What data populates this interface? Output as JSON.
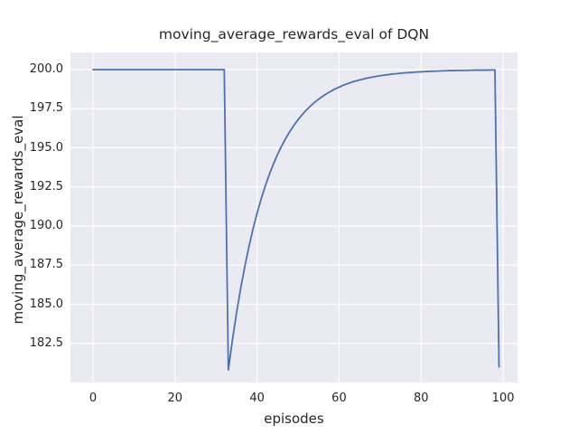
{
  "colors": {
    "figure_bg": "#ffffff",
    "axes_bg": "#eaeaf2",
    "grid": "#ffffff",
    "line": "#4c72b0",
    "text": "#262626"
  },
  "chart_data": {
    "type": "line",
    "title": "moving_average_rewards_eval of DQN",
    "xlabel": "episodes",
    "ylabel": "moving_average_rewards_eval",
    "legend": "none",
    "grid": true,
    "xlim": [
      -5.5,
      103.5
    ],
    "ylim": [
      180.0,
      201.1
    ],
    "x_ticks": [
      0,
      20,
      40,
      60,
      80,
      100
    ],
    "x_tick_labels": [
      "0",
      "20",
      "40",
      "60",
      "80",
      "100"
    ],
    "y_ticks": [
      200.0,
      197.5,
      195.0,
      192.5,
      190.0,
      187.5,
      185.0,
      182.5
    ],
    "y_tick_labels": [
      "200.0",
      "197.5",
      "195.0",
      "192.5",
      "190.0",
      "187.5",
      "185.0",
      "182.5"
    ],
    "series": [
      {
        "name": "moving_average_rewards_eval",
        "color": "#4c72b0",
        "x": [
          0,
          1,
          2,
          3,
          4,
          5,
          6,
          7,
          8,
          9,
          10,
          11,
          12,
          13,
          14,
          15,
          16,
          17,
          18,
          19,
          20,
          21,
          22,
          23,
          24,
          25,
          26,
          27,
          28,
          29,
          30,
          31,
          32,
          33,
          34,
          35,
          36,
          37,
          38,
          39,
          40,
          41,
          42,
          43,
          44,
          45,
          46,
          47,
          48,
          49,
          50,
          51,
          52,
          53,
          54,
          55,
          56,
          57,
          58,
          59,
          60,
          61,
          62,
          63,
          64,
          65,
          66,
          67,
          68,
          69,
          70,
          71,
          72,
          73,
          74,
          75,
          76,
          77,
          78,
          79,
          80,
          81,
          82,
          83,
          84,
          85,
          86,
          87,
          88,
          89,
          90,
          91,
          92,
          93,
          94,
          95,
          96,
          97,
          98,
          99
        ],
        "y": [
          200.0,
          200.0,
          200.0,
          200.0,
          200.0,
          200.0,
          200.0,
          200.0,
          200.0,
          200.0,
          200.0,
          200.0,
          200.0,
          200.0,
          200.0,
          200.0,
          200.0,
          200.0,
          200.0,
          200.0,
          200.0,
          200.0,
          200.0,
          200.0,
          200.0,
          200.0,
          200.0,
          200.0,
          200.0,
          200.0,
          200.0,
          200.0,
          200.0,
          180.8,
          182.72,
          184.45,
          186.0,
          187.4,
          188.66,
          189.8,
          190.82,
          191.73,
          192.56,
          193.31,
          193.97,
          194.58,
          195.12,
          195.61,
          196.05,
          196.44,
          196.8,
          197.12,
          197.41,
          197.67,
          197.9,
          198.11,
          198.3,
          198.47,
          198.62,
          198.76,
          198.88,
          199.0,
          199.1,
          199.19,
          199.27,
          199.34,
          199.41,
          199.47,
          199.52,
          199.57,
          199.61,
          199.65,
          199.68,
          199.72,
          199.74,
          199.77,
          199.79,
          199.81,
          199.83,
          199.85,
          199.86,
          199.88,
          199.89,
          199.9,
          199.91,
          199.92,
          199.93,
          199.94,
          199.94,
          199.95,
          199.95,
          199.96,
          199.96,
          199.97,
          199.97,
          199.97,
          199.97,
          199.98,
          199.98,
          181.0
        ]
      }
    ]
  }
}
